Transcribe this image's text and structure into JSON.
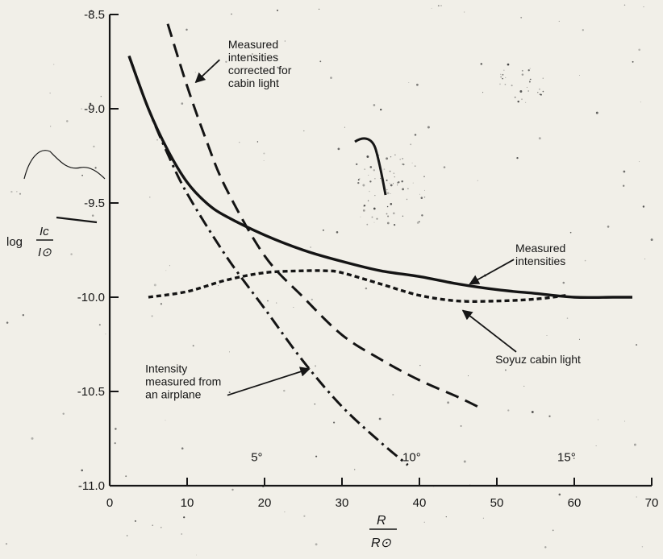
{
  "chart_data": {
    "type": "line",
    "title": "",
    "xlabel": {
      "numerator": "R",
      "denominator": "R⊙"
    },
    "ylabel": {
      "prefix": "log",
      "numerator": "Ic",
      "denominator": "I⊙"
    },
    "xlim": [
      0,
      70
    ],
    "ylim": [
      -11.0,
      -8.5
    ],
    "x_ticks": [
      0,
      10,
      20,
      30,
      40,
      50,
      60,
      70
    ],
    "x_tick_labels": [
      "0",
      "10",
      "20",
      "30",
      "40",
      "50",
      "60",
      "70"
    ],
    "y_ticks": [
      -8.5,
      -9.0,
      -9.5,
      -10.0,
      -10.5,
      -11.0
    ],
    "y_tick_labels": [
      "-8.5",
      "-9.0",
      "-9.5",
      "-10.0",
      "-10.5",
      "-11.0"
    ],
    "grid": false,
    "angle_labels": [
      {
        "x": 19,
        "y": -10.87,
        "text": "5°"
      },
      {
        "x": 39,
        "y": -10.87,
        "text": "10°"
      },
      {
        "x": 59,
        "y": -10.87,
        "text": "15°"
      }
    ],
    "series": [
      {
        "id": "measured",
        "style": "solid",
        "x": [
          2.5,
          5,
          7.5,
          10,
          12.5,
          15,
          20,
          25,
          30,
          35,
          40,
          45,
          50,
          55,
          60,
          65,
          67.5
        ],
        "y": [
          -8.72,
          -9.0,
          -9.22,
          -9.39,
          -9.5,
          -9.57,
          -9.67,
          -9.75,
          -9.81,
          -9.86,
          -9.89,
          -9.93,
          -9.96,
          -9.98,
          -10.0,
          -10.0,
          -10.0
        ]
      },
      {
        "id": "corrected",
        "style": "dash",
        "x": [
          7.5,
          10,
          12.5,
          15,
          20,
          25,
          30,
          35,
          40,
          45,
          48
        ],
        "y": [
          -8.55,
          -8.88,
          -9.17,
          -9.42,
          -9.78,
          -10.0,
          -10.2,
          -10.33,
          -10.44,
          -10.53,
          -10.59
        ]
      },
      {
        "id": "airplane",
        "style": "dashdot",
        "x": [
          2.5,
          5,
          7.5,
          10,
          15,
          20,
          25,
          30,
          35,
          38.5
        ],
        "y": [
          -8.72,
          -9.0,
          -9.24,
          -9.45,
          -9.78,
          -10.06,
          -10.34,
          -10.58,
          -10.77,
          -10.89
        ]
      },
      {
        "id": "cabin",
        "style": "dot",
        "x": [
          5,
          10,
          15,
          20,
          25,
          28,
          30,
          35,
          40,
          45,
          50,
          55,
          59
        ],
        "y": [
          -10.0,
          -9.97,
          -9.91,
          -9.87,
          -9.86,
          -9.86,
          -9.87,
          -9.93,
          -9.99,
          -10.02,
          -10.02,
          -10.01,
          -9.99
        ]
      }
    ],
    "annotations": [
      {
        "id": "corrected-label",
        "lines": [
          "Measured",
          "intensities",
          "corrected for",
          "cabin light"
        ],
        "text_x": 15.3,
        "text_y": -8.68,
        "arrow_from": [
          14.2,
          -8.74
        ],
        "arrow_to": [
          11.1,
          -8.86
        ]
      },
      {
        "id": "measured-label",
        "lines": [
          "Measured",
          "intensities"
        ],
        "text_x": 52.4,
        "text_y": -9.76,
        "arrow_from": [
          52.2,
          -9.8
        ],
        "arrow_to": [
          46.5,
          -9.93
        ]
      },
      {
        "id": "cabin-label",
        "lines": [
          "Soyuz cabin light"
        ],
        "text_x": 49.8,
        "text_y": -10.35,
        "arrow_from": [
          52.5,
          -10.29
        ],
        "arrow_to": [
          45.6,
          -10.07
        ]
      },
      {
        "id": "airplane-label",
        "lines": [
          "Intensity",
          "measured from",
          "an airplane"
        ],
        "text_x": 4.6,
        "text_y": -10.4,
        "arrow_from": [
          15.2,
          -10.52
        ],
        "arrow_to": [
          25.8,
          -10.38
        ]
      }
    ]
  }
}
